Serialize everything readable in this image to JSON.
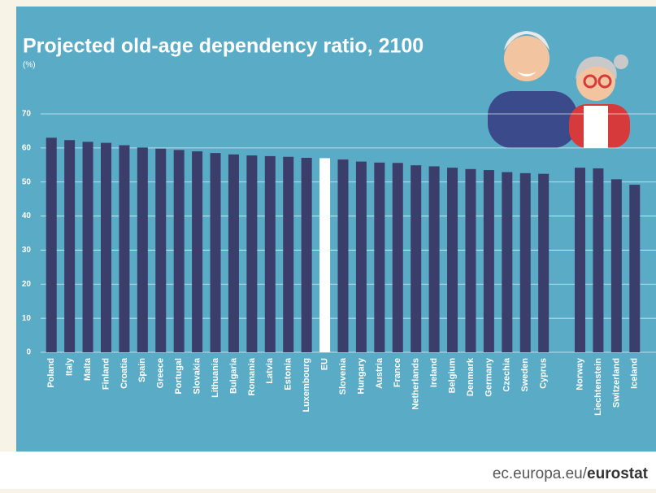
{
  "chart_data": {
    "type": "bar",
    "title": "Projected old-age dependency ratio, 2100",
    "subtitle": "(%)",
    "categories": [
      "Poland",
      "Italy",
      "Malta",
      "Finland",
      "Croatia",
      "Spain",
      "Greece",
      "Portugal",
      "Slovakia",
      "Lithuania",
      "Bulgaria",
      "Romania",
      "Latvia",
      "Estonia",
      "Luxembourg",
      "EU",
      "Slovenia",
      "Hungary",
      "Austria",
      "France",
      "Netherlands",
      "Ireland",
      "Belgium",
      "Denmark",
      "Germany",
      "Czechia",
      "Sweden",
      "Cyprus",
      null,
      "Norway",
      "Liechtenstein",
      "Switzerland",
      "Iceland"
    ],
    "values": [
      63.0,
      62.3,
      61.8,
      61.5,
      60.8,
      60.1,
      59.8,
      59.4,
      59.0,
      58.5,
      58.1,
      57.8,
      57.6,
      57.4,
      57.1,
      57.0,
      56.6,
      56.0,
      55.7,
      55.6,
      54.9,
      54.6,
      54.2,
      53.8,
      53.5,
      52.9,
      52.6,
      52.4,
      null,
      54.2,
      54.0,
      50.8,
      49.2
    ],
    "colors": [
      "#3b3d6b",
      "#3b3d6b",
      "#3b3d6b",
      "#3b3d6b",
      "#3b3d6b",
      "#3b3d6b",
      "#3b3d6b",
      "#3b3d6b",
      "#3b3d6b",
      "#3b3d6b",
      "#3b3d6b",
      "#3b3d6b",
      "#3b3d6b",
      "#3b3d6b",
      "#3b3d6b",
      "#ffffff",
      "#3b3d6b",
      "#3b3d6b",
      "#3b3d6b",
      "#3b3d6b",
      "#3b3d6b",
      "#3b3d6b",
      "#3b3d6b",
      "#3b3d6b",
      "#3b3d6b",
      "#3b3d6b",
      "#3b3d6b",
      "#3b3d6b",
      null,
      "#3b3d6b",
      "#3b3d6b",
      "#3b3d6b",
      "#3b3d6b"
    ],
    "ylim": [
      0,
      70
    ],
    "yticks": [
      0,
      10,
      20,
      30,
      40,
      50,
      60,
      70
    ],
    "grid": true
  },
  "footer": {
    "domain": "ec.europa.eu/",
    "brand": "eurostat"
  }
}
